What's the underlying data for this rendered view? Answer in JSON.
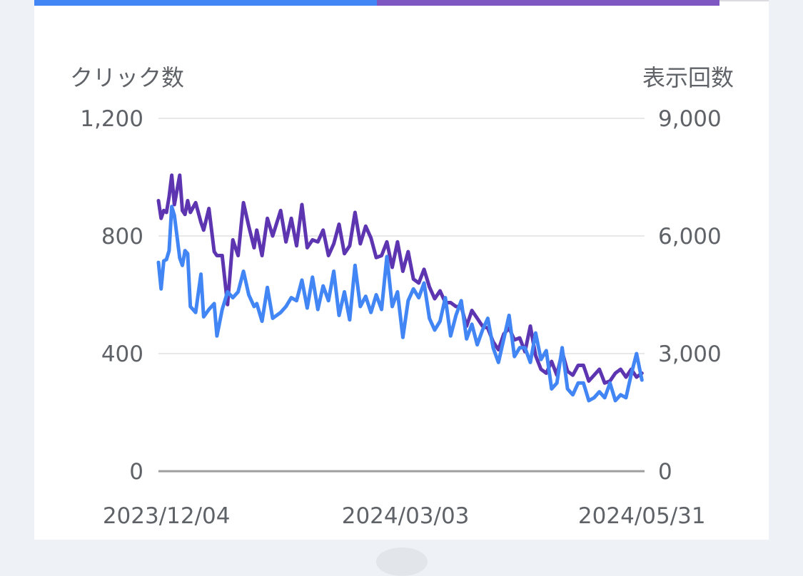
{
  "colors": {
    "clicks": "#4285f4",
    "impressions": "#5e35b1",
    "impressions_tab": "#7e57c2",
    "grid": "#e8e8e8",
    "baseline": "#9e9e9e",
    "text": "#5f6368"
  },
  "tabs": [
    {
      "name": "clicks",
      "color": "#4285f4",
      "selected": true
    },
    {
      "name": "impressions",
      "color": "#7e57c2",
      "selected": true
    }
  ],
  "chart_data": {
    "type": "line",
    "axes": {
      "left": {
        "title": "クリック数",
        "min": 0,
        "max": 1200,
        "ticks": [
          0,
          400,
          800,
          1200
        ],
        "tick_labels": [
          "0",
          "400",
          "800",
          "1,200"
        ]
      },
      "right": {
        "title": "表示回数",
        "min": 0,
        "max": 9000,
        "ticks": [
          0,
          3000,
          6000,
          9000
        ],
        "tick_labels": [
          "0",
          "3,000",
          "6,000",
          "9,000"
        ]
      },
      "x": {
        "start": "2023-12-01",
        "end": "2024-06-01",
        "tick_dates": [
          "2023-12-04",
          "2024-03-03",
          "2024-05-31"
        ],
        "tick_labels": [
          "2023/12/04",
          "2024/03/03",
          "2024/05/31"
        ]
      }
    },
    "grid": true,
    "series": [
      {
        "key": "impressions",
        "axis": "right",
        "color": "#5e35b1",
        "x": [
          "2023-12-01",
          "2023-12-02",
          "2023-12-03",
          "2023-12-04",
          "2023-12-05",
          "2023-12-06",
          "2023-12-07",
          "2023-12-09",
          "2023-12-10",
          "2023-12-11",
          "2023-12-12",
          "2023-12-13",
          "2023-12-15",
          "2023-12-17",
          "2023-12-18",
          "2023-12-20",
          "2023-12-22",
          "2023-12-23",
          "2023-12-25",
          "2023-12-27",
          "2023-12-29",
          "2023-12-31",
          "2024-01-02",
          "2024-01-04",
          "2024-01-06",
          "2024-01-07",
          "2024-01-09",
          "2024-01-11",
          "2024-01-13",
          "2024-01-16",
          "2024-01-18",
          "2024-01-20",
          "2024-01-22",
          "2024-01-24",
          "2024-01-26",
          "2024-01-28",
          "2024-01-30",
          "2024-02-01",
          "2024-02-03",
          "2024-02-05",
          "2024-02-07",
          "2024-02-09",
          "2024-02-11",
          "2024-02-13",
          "2024-02-15",
          "2024-02-17",
          "2024-02-19",
          "2024-02-21",
          "2024-02-23",
          "2024-02-25",
          "2024-02-27",
          "2024-02-29",
          "2024-03-02",
          "2024-03-04",
          "2024-03-06",
          "2024-03-08",
          "2024-03-10",
          "2024-03-12",
          "2024-03-14",
          "2024-03-16",
          "2024-03-18",
          "2024-03-20",
          "2024-03-22",
          "2024-03-24",
          "2024-03-26",
          "2024-03-28",
          "2024-03-30",
          "2024-04-01",
          "2024-04-03",
          "2024-04-05",
          "2024-04-07",
          "2024-04-09",
          "2024-04-11",
          "2024-04-13",
          "2024-04-15",
          "2024-04-17",
          "2024-04-19",
          "2024-04-21",
          "2024-04-23",
          "2024-04-25",
          "2024-04-27",
          "2024-04-29",
          "2024-05-01",
          "2024-05-03",
          "2024-05-05",
          "2024-05-07",
          "2024-05-09",
          "2024-05-11",
          "2024-05-13",
          "2024-05-15",
          "2024-05-17",
          "2024-05-19",
          "2024-05-21",
          "2024-05-23",
          "2024-05-25",
          "2024-05-27",
          "2024-05-29",
          "2024-05-31"
        ],
        "values": [
          6900,
          6450,
          6650,
          6600,
          7000,
          7550,
          6800,
          7550,
          6650,
          6550,
          6900,
          6600,
          6850,
          6350,
          6150,
          6700,
          5600,
          5500,
          5500,
          4250,
          5900,
          5500,
          6850,
          6250,
          5700,
          6150,
          5500,
          6450,
          6000,
          6650,
          5850,
          6450,
          5750,
          6800,
          5700,
          5900,
          5850,
          6150,
          5500,
          5800,
          6300,
          5550,
          5750,
          6600,
          5800,
          6250,
          5950,
          5450,
          5500,
          5850,
          5200,
          5850,
          5100,
          5600,
          4900,
          4800,
          5150,
          4700,
          4400,
          4600,
          4300,
          4300,
          4200,
          4200,
          3700,
          4100,
          3900,
          3700,
          3650,
          3300,
          3100,
          3500,
          3650,
          3350,
          3400,
          3050,
          3700,
          2950,
          2600,
          2500,
          2800,
          2450,
          3050,
          2550,
          2450,
          2700,
          2700,
          2300,
          2450,
          2600,
          2250,
          2300,
          2500,
          2600,
          2400,
          2600,
          2400,
          2500
        ]
      },
      {
        "key": "clicks",
        "axis": "left",
        "color": "#4285f4",
        "x": [
          "2023-12-01",
          "2023-12-02",
          "2023-12-03",
          "2023-12-04",
          "2023-12-05",
          "2023-12-06",
          "2023-12-07",
          "2023-12-09",
          "2023-12-10",
          "2023-12-11",
          "2023-12-12",
          "2023-12-13",
          "2023-12-15",
          "2023-12-17",
          "2023-12-18",
          "2023-12-20",
          "2023-12-22",
          "2023-12-23",
          "2023-12-25",
          "2023-12-27",
          "2023-12-29",
          "2023-12-31",
          "2024-01-02",
          "2024-01-04",
          "2024-01-06",
          "2024-01-07",
          "2024-01-09",
          "2024-01-11",
          "2024-01-13",
          "2024-01-16",
          "2024-01-18",
          "2024-01-20",
          "2024-01-22",
          "2024-01-24",
          "2024-01-26",
          "2024-01-28",
          "2024-01-30",
          "2024-02-01",
          "2024-02-03",
          "2024-02-05",
          "2024-02-07",
          "2024-02-09",
          "2024-02-11",
          "2024-02-13",
          "2024-02-15",
          "2024-02-17",
          "2024-02-19",
          "2024-02-21",
          "2024-02-23",
          "2024-02-25",
          "2024-02-27",
          "2024-02-29",
          "2024-03-02",
          "2024-03-04",
          "2024-03-06",
          "2024-03-08",
          "2024-03-10",
          "2024-03-12",
          "2024-03-14",
          "2024-03-16",
          "2024-03-18",
          "2024-03-20",
          "2024-03-22",
          "2024-03-24",
          "2024-03-26",
          "2024-03-28",
          "2024-03-30",
          "2024-04-01",
          "2024-04-03",
          "2024-04-05",
          "2024-04-07",
          "2024-04-09",
          "2024-04-11",
          "2024-04-13",
          "2024-04-15",
          "2024-04-17",
          "2024-04-19",
          "2024-04-21",
          "2024-04-23",
          "2024-04-25",
          "2024-04-27",
          "2024-04-29",
          "2024-05-01",
          "2024-05-03",
          "2024-05-05",
          "2024-05-07",
          "2024-05-09",
          "2024-05-11",
          "2024-05-13",
          "2024-05-15",
          "2024-05-17",
          "2024-05-19",
          "2024-05-21",
          "2024-05-23",
          "2024-05-25",
          "2024-05-27",
          "2024-05-29",
          "2024-05-31"
        ],
        "values": [
          710,
          620,
          715,
          720,
          750,
          900,
          870,
          725,
          700,
          750,
          740,
          560,
          540,
          670,
          525,
          550,
          570,
          460,
          550,
          610,
          590,
          610,
          680,
          600,
          560,
          570,
          510,
          625,
          520,
          540,
          560,
          590,
          580,
          650,
          555,
          660,
          550,
          630,
          580,
          680,
          530,
          610,
          515,
          700,
          560,
          595,
          540,
          600,
          550,
          730,
          560,
          610,
          455,
          580,
          620,
          590,
          640,
          520,
          480,
          510,
          590,
          460,
          530,
          580,
          450,
          500,
          430,
          480,
          520,
          420,
          370,
          450,
          530,
          390,
          420,
          420,
          370,
          470,
          380,
          410,
          280,
          300,
          420,
          280,
          260,
          300,
          300,
          240,
          250,
          270,
          250,
          300,
          240,
          260,
          250,
          330,
          400,
          310
        ]
      }
    ]
  }
}
